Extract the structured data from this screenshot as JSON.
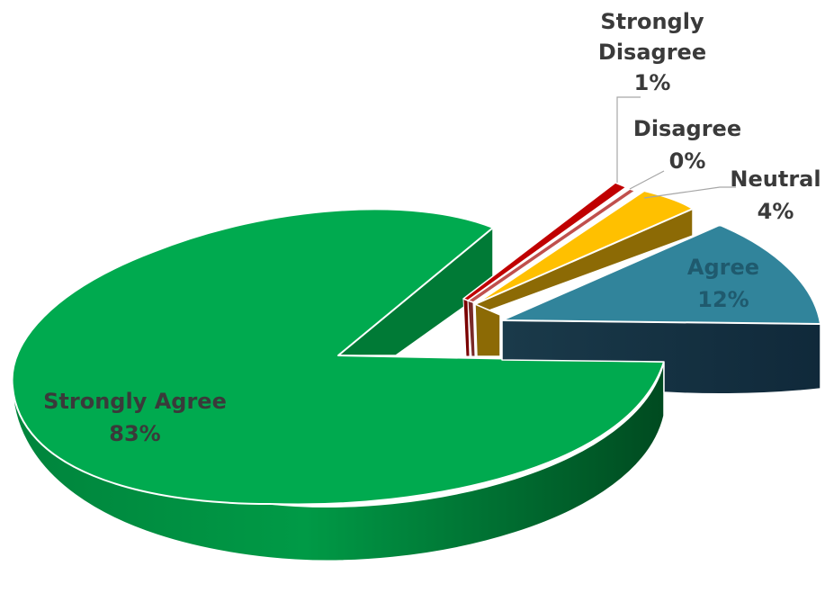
{
  "chart_data": {
    "type": "pie",
    "style": "3d-exploded",
    "title": "",
    "slices": [
      {
        "label": "Strongly Agree",
        "pct_label": "83%",
        "value": 83,
        "color": "#00AA4F",
        "side_color": "#007A36",
        "label_color": "#3a3a3a"
      },
      {
        "label": "Agree",
        "pct_label": "12%",
        "value": 12,
        "color": "#31849B",
        "side_color": "#17323F",
        "label_color": "#1F5A6E"
      },
      {
        "label": "Neutral",
        "pct_label": "4%",
        "value": 4,
        "color": "#FFC000",
        "side_color": "#8C6A05",
        "label_color": "#3a3a3a"
      },
      {
        "label": "Disagree",
        "pct_label": "0%",
        "value": 0,
        "color": "#C0504D",
        "side_color": "#7A2A28",
        "label_color": "#3a3a3a"
      },
      {
        "label": "Strongly Disagree",
        "pct_label": "1%",
        "value": 1,
        "color": "#C00000",
        "side_color": "#7A0000",
        "label_color": "#3a3a3a"
      }
    ]
  }
}
